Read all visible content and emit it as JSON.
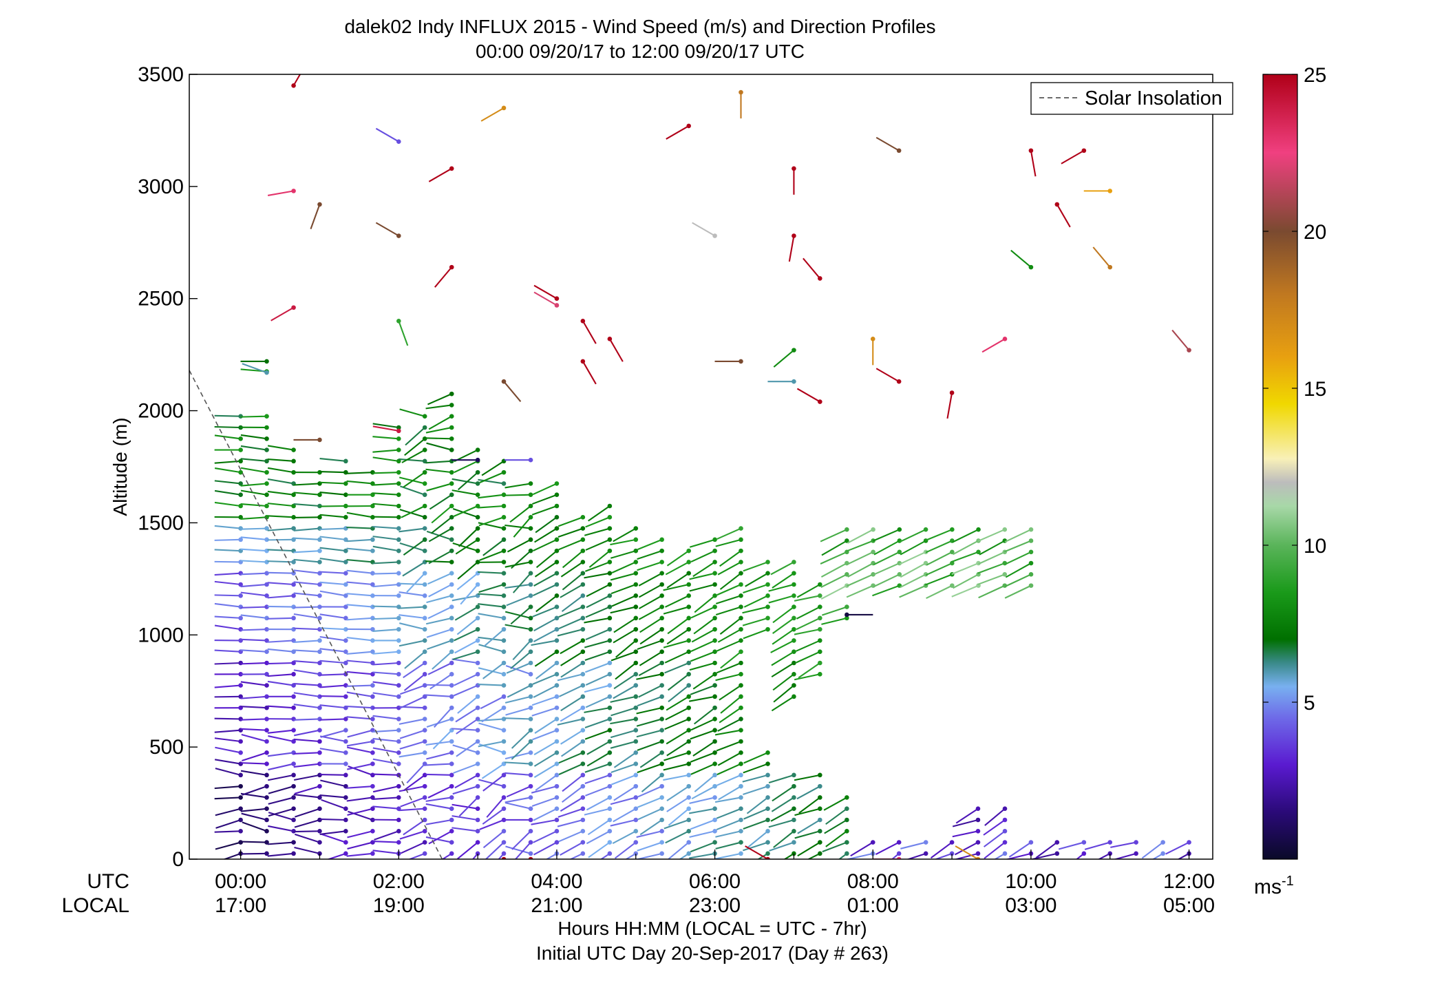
{
  "chart_data": {
    "type": "scatter",
    "title": "dalek02 Indy INFLUX 2015 - Wind Speed (m/s) and Direction Profiles",
    "subtitle": "00:00 09/20/17 to 12:00 09/20/17  UTC",
    "ylabel": "Altitude (m)",
    "xlabel_line1": "Hours HH:MM  (LOCAL = UTC - 7hr)",
    "xlabel_line2": "Initial UTC Day 20-Sep-2017 (Day # 263)",
    "x_row_utc_label": "UTC",
    "x_row_local_label": "LOCAL",
    "xlim_hours_utc": [
      -0.65,
      12.3
    ],
    "ylim": [
      0,
      3500
    ],
    "y_ticks": [
      0,
      500,
      1000,
      1500,
      2000,
      2500,
      3000,
      3500
    ],
    "x_ticks_hours": [
      0,
      2,
      4,
      6,
      8,
      10,
      12
    ],
    "x_tick_labels_utc": [
      "00:00",
      "02:00",
      "04:00",
      "06:00",
      "08:00",
      "10:00",
      "12:00"
    ],
    "x_tick_labels_local": [
      "17:00",
      "19:00",
      "21:00",
      "23:00",
      "01:00",
      "03:00",
      "05:00"
    ],
    "legend": {
      "entries": [
        "Solar Insolation"
      ],
      "placement": "top-right"
    },
    "solar_insolation": {
      "x_hours": [
        -0.65,
        2.55
      ],
      "y": [
        2180,
        0
      ],
      "color": "#555555"
    },
    "colorbar": {
      "min": 0,
      "max": 25,
      "ticks": [
        5,
        10,
        15,
        20,
        25
      ],
      "tick_labels": [
        "5",
        "10",
        "15",
        "20",
        "25"
      ],
      "unit": "ms",
      "unit_exponent": "-1",
      "stops": [
        [
          0.0,
          "#0a0a28"
        ],
        [
          0.06,
          "#2a0a78"
        ],
        [
          0.12,
          "#5a1ad0"
        ],
        [
          0.18,
          "#6e6ae8"
        ],
        [
          0.22,
          "#78b0f0"
        ],
        [
          0.25,
          "#3a8a8a"
        ],
        [
          0.28,
          "#007000"
        ],
        [
          0.34,
          "#1a9a1a"
        ],
        [
          0.4,
          "#5ab45a"
        ],
        [
          0.45,
          "#a8d8a8"
        ],
        [
          0.48,
          "#bcbcbc"
        ],
        [
          0.51,
          "#f8f0b8"
        ],
        [
          0.58,
          "#f0d800"
        ],
        [
          0.64,
          "#e8a010"
        ],
        [
          0.72,
          "#c07820"
        ],
        [
          0.8,
          "#7a4a30"
        ],
        [
          0.9,
          "#f04080"
        ],
        [
          1.0,
          "#b00018"
        ]
      ]
    },
    "profiles": [
      {
        "t": 0.0,
        "z_top": 2000,
        "gap": []
      },
      {
        "t": 0.33,
        "z_top": 2200,
        "gap": [
          2000,
          2150
        ]
      },
      {
        "t": 0.67,
        "z_top": 1870,
        "gap": []
      },
      {
        "t": 1.0,
        "z_top": 1740,
        "gap": []
      },
      {
        "t": 1.33,
        "z_top": 1820,
        "gap": []
      },
      {
        "t": 1.67,
        "z_top": 1740,
        "gap": []
      },
      {
        "t": 2.0,
        "z_top": 1950,
        "gap": []
      },
      {
        "t": 2.33,
        "z_top": 2000,
        "gap": []
      },
      {
        "t": 2.67,
        "z_top": 2100,
        "gap": []
      },
      {
        "t": 3.0,
        "z_top": 1830,
        "gap": []
      },
      {
        "t": 3.33,
        "z_top": 1780,
        "gap": []
      },
      {
        "t": 3.67,
        "z_top": 1720,
        "gap": []
      },
      {
        "t": 4.0,
        "z_top": 1700,
        "gap": []
      },
      {
        "t": 4.33,
        "z_top": 1540,
        "gap": []
      },
      {
        "t": 4.67,
        "z_top": 1600,
        "gap": []
      },
      {
        "t": 5.0,
        "z_top": 1480,
        "gap": []
      },
      {
        "t": 5.33,
        "z_top": 1470,
        "gap": []
      },
      {
        "t": 5.67,
        "z_top": 1400,
        "gap": []
      },
      {
        "t": 6.0,
        "z_top": 1470,
        "gap": []
      },
      {
        "t": 6.33,
        "z_top": 1480,
        "gap": []
      },
      {
        "t": 6.67,
        "z_top": 1370,
        "gap": [
          520,
          1000
        ]
      },
      {
        "t": 7.0,
        "z_top": 1330,
        "gap": [
          420,
          700
        ]
      },
      {
        "t": 7.33,
        "z_top": 1260,
        "gap": [
          420,
          800
        ]
      },
      {
        "t": 7.67,
        "z_top": 1150,
        "gap": [
          300,
          1050
        ]
      },
      {
        "t": 8.0,
        "z_top": 120,
        "gap": []
      },
      {
        "t": 8.33,
        "z_top": 100,
        "gap": []
      },
      {
        "t": 8.67,
        "z_top": 100,
        "gap": []
      },
      {
        "t": 9.0,
        "z_top": 100,
        "gap": []
      },
      {
        "t": 9.33,
        "z_top": 250,
        "gap": []
      },
      {
        "t": 9.67,
        "z_top": 230,
        "gap": []
      },
      {
        "t": 10.0,
        "z_top": 100,
        "gap": []
      },
      {
        "t": 10.33,
        "z_top": 100,
        "gap": []
      },
      {
        "t": 10.67,
        "z_top": 100,
        "gap": []
      },
      {
        "t": 11.0,
        "z_top": 100,
        "gap": []
      },
      {
        "t": 11.33,
        "z_top": 100,
        "gap": []
      },
      {
        "t": 11.67,
        "z_top": 100,
        "gap": []
      },
      {
        "t": 12.0,
        "z_top": 100,
        "gap": []
      }
    ],
    "upper_cluster": {
      "t_from": 7.67,
      "t_to": 10.0,
      "z_from": 1220,
      "z_to": 1500
    },
    "scattered_high_level_barbs": [
      {
        "t": 0.67,
        "z": 3450,
        "speed": 25,
        "dir": 30
      },
      {
        "t": 2.0,
        "z": 3200,
        "speed": 4,
        "dir": 300
      },
      {
        "t": 3.33,
        "z": 3350,
        "speed": 17,
        "dir": 240
      },
      {
        "t": 2.67,
        "z": 3080,
        "speed": 25,
        "dir": 240
      },
      {
        "t": 5.67,
        "z": 3270,
        "speed": 25,
        "dir": 240
      },
      {
        "t": 6.33,
        "z": 3420,
        "speed": 18,
        "dir": 180
      },
      {
        "t": 0.67,
        "z": 2980,
        "speed": 23,
        "dir": 260
      },
      {
        "t": 1.0,
        "z": 2920,
        "speed": 20,
        "dir": 200
      },
      {
        "t": 2.0,
        "z": 2780,
        "speed": 20,
        "dir": 300
      },
      {
        "t": 7.0,
        "z": 3080,
        "speed": 25,
        "dir": 180
      },
      {
        "t": 8.33,
        "z": 3160,
        "speed": 20,
        "dir": 300
      },
      {
        "t": 10.0,
        "z": 3160,
        "speed": 25,
        "dir": 170
      },
      {
        "t": 10.67,
        "z": 3160,
        "speed": 25,
        "dir": 240
      },
      {
        "t": 11.0,
        "z": 2980,
        "speed": 16,
        "dir": 270
      },
      {
        "t": 10.33,
        "z": 2920,
        "speed": 25,
        "dir": 150
      },
      {
        "t": 6.0,
        "z": 2780,
        "speed": 12,
        "dir": 300
      },
      {
        "t": 2.67,
        "z": 2640,
        "speed": 25,
        "dir": 220
      },
      {
        "t": 0.67,
        "z": 2460,
        "speed": 24,
        "dir": 240
      },
      {
        "t": 2.0,
        "z": 2400,
        "speed": 9,
        "dir": 160
      },
      {
        "t": 4.0,
        "z": 2470,
        "speed": 22,
        "dir": 300
      },
      {
        "t": 4.0,
        "z": 2500,
        "speed": 25,
        "dir": 300
      },
      {
        "t": 4.33,
        "z": 2400,
        "speed": 25,
        "dir": 150
      },
      {
        "t": 4.67,
        "z": 2320,
        "speed": 25,
        "dir": 150
      },
      {
        "t": 4.33,
        "z": 2220,
        "speed": 25,
        "dir": 150
      },
      {
        "t": 3.33,
        "z": 2130,
        "speed": 20,
        "dir": 140
      },
      {
        "t": 6.33,
        "z": 2220,
        "speed": 20,
        "dir": 270
      },
      {
        "t": 7.0,
        "z": 2780,
        "speed": 25,
        "dir": 190
      },
      {
        "t": 7.33,
        "z": 2590,
        "speed": 25,
        "dir": 320
      },
      {
        "t": 7.0,
        "z": 2270,
        "speed": 8,
        "dir": 230
      },
      {
        "t": 7.0,
        "z": 2130,
        "speed": 6,
        "dir": 270
      },
      {
        "t": 7.33,
        "z": 2040,
        "speed": 25,
        "dir": 300
      },
      {
        "t": 8.33,
        "z": 2130,
        "speed": 25,
        "dir": 300
      },
      {
        "t": 8.0,
        "z": 2320,
        "speed": 17,
        "dir": 180
      },
      {
        "t": 9.0,
        "z": 2080,
        "speed": 25,
        "dir": 190
      },
      {
        "t": 9.67,
        "z": 2320,
        "speed": 23,
        "dir": 240
      },
      {
        "t": 10.0,
        "z": 2640,
        "speed": 8,
        "dir": 310
      },
      {
        "t": 11.0,
        "z": 2640,
        "speed": 18,
        "dir": 320
      },
      {
        "t": 12.0,
        "z": 2270,
        "speed": 21,
        "dir": 320
      },
      {
        "t": 0.33,
        "z": 2220,
        "speed": 7,
        "dir": 270
      },
      {
        "t": 0.33,
        "z": 2170,
        "speed": 6,
        "dir": 290
      },
      {
        "t": 1.0,
        "z": 1870,
        "speed": 20,
        "dir": 270
      },
      {
        "t": 2.0,
        "z": 1910,
        "speed": 24,
        "dir": 280
      },
      {
        "t": 3.67,
        "z": 1780,
        "speed": 4,
        "dir": 270
      },
      {
        "t": 3.0,
        "z": 1780,
        "speed": 1,
        "dir": 270
      },
      {
        "t": 7.67,
        "z": 1090,
        "speed": 0.5,
        "dir": 90
      },
      {
        "t": 9.33,
        "z": 0,
        "speed": 17,
        "dir": 300
      },
      {
        "t": 3.33,
        "z": 0,
        "speed": 25,
        "dir": 240
      },
      {
        "t": 3.67,
        "z": 0,
        "speed": 25,
        "dir": 200
      },
      {
        "t": 6.67,
        "z": 0,
        "speed": 25,
        "dir": 300
      },
      {
        "t": 8.33,
        "z": 0,
        "speed": 23,
        "dir": 270
      }
    ]
  }
}
